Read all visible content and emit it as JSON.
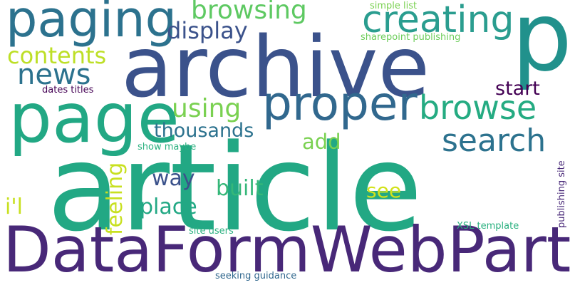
{
  "background": "#ffffff",
  "words": [
    {
      "text": "article",
      "color": "#22a884"
    },
    {
      "text": "DataFormWebPart",
      "color": "#482878"
    },
    {
      "text": "archive",
      "color": "#3b528b"
    },
    {
      "text": "p",
      "color": "#21918c"
    },
    {
      "text": "page",
      "color": "#22a884"
    },
    {
      "text": "paging",
      "color": "#2c728e"
    },
    {
      "text": "proper",
      "color": "#31688e"
    },
    {
      "text": "creating",
      "color": "#2a9d8f"
    },
    {
      "text": "browsing",
      "color": "#5ec962"
    },
    {
      "text": "display",
      "color": "#3b528b"
    },
    {
      "text": "contents",
      "color": "#bddf26"
    },
    {
      "text": "news",
      "color": "#2c728e"
    },
    {
      "text": "browse",
      "color": "#25ab82"
    },
    {
      "text": "search",
      "color": "#2c728e"
    },
    {
      "text": "using",
      "color": "#7ad151"
    },
    {
      "text": "thousands",
      "color": "#2c728e"
    },
    {
      "text": "start",
      "color": "#440154"
    },
    {
      "text": "add",
      "color": "#7ad151"
    },
    {
      "text": "way",
      "color": "#3b528b"
    },
    {
      "text": "built",
      "color": "#35b779"
    },
    {
      "text": "see",
      "color": "#d2e21b"
    },
    {
      "text": "place",
      "color": "#22a884"
    },
    {
      "text": "i'l",
      "color": "#c8e020"
    },
    {
      "text": "feeling",
      "color": "#c8e020"
    },
    {
      "text": "simple list",
      "color": "#7ad151"
    },
    {
      "text": "sharepoint publishing",
      "color": "#6ccd5a"
    },
    {
      "text": "dates titles",
      "color": "#440154"
    },
    {
      "text": "show maybe",
      "color": "#2ab07f"
    },
    {
      "text": "site users",
      "color": "#2ab07f"
    },
    {
      "text": "XSL template",
      "color": "#2ab07f"
    },
    {
      "text": "seeking guidance",
      "color": "#31688e"
    },
    {
      "text": "publishing site",
      "color": "#482878"
    }
  ]
}
